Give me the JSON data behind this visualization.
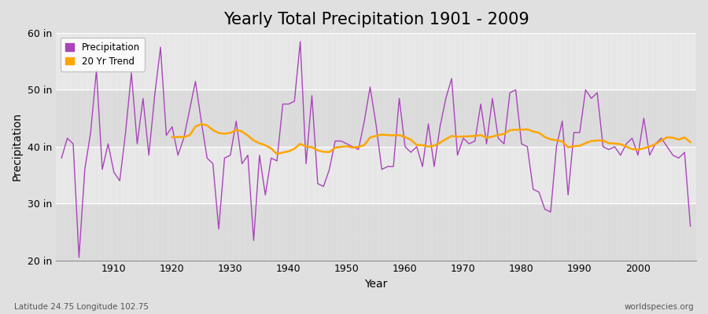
{
  "title": "Yearly Total Precipitation 1901 - 2009",
  "xlabel": "Year",
  "ylabel": "Precipitation",
  "start_year": 1901,
  "end_year": 2009,
  "precipitation": [
    38.0,
    41.5,
    40.5,
    20.5,
    36.0,
    42.5,
    53.5,
    36.0,
    40.5,
    35.5,
    34.0,
    42.5,
    53.0,
    40.5,
    48.5,
    38.5,
    49.0,
    57.5,
    42.0,
    43.5,
    38.5,
    41.5,
    46.5,
    51.5,
    44.5,
    38.0,
    37.0,
    25.5,
    38.0,
    38.5,
    44.5,
    37.0,
    38.5,
    23.5,
    38.5,
    31.5,
    38.0,
    37.5,
    47.5,
    47.5,
    48.0,
    58.5,
    37.0,
    49.0,
    33.5,
    33.0,
    36.0,
    41.0,
    41.0,
    40.5,
    40.0,
    39.5,
    44.5,
    50.5,
    44.0,
    36.0,
    36.5,
    36.5,
    48.5,
    40.0,
    39.0,
    40.0,
    36.5,
    44.0,
    36.5,
    43.5,
    48.5,
    52.0,
    38.5,
    41.5,
    40.5,
    41.0,
    47.5,
    40.5,
    48.5,
    41.5,
    40.5,
    49.5,
    50.0,
    40.5,
    40.0,
    32.5,
    32.0,
    29.0,
    28.5,
    40.0,
    44.5,
    31.5,
    42.5,
    42.5,
    50.0,
    48.5,
    49.5,
    40.0,
    39.5,
    40.0,
    38.5,
    40.5,
    41.5,
    38.5,
    45.0,
    38.5,
    40.5,
    41.5,
    40.0,
    38.5,
    38.0,
    39.0,
    26.0
  ],
  "ylim": [
    20,
    60
  ],
  "yticks": [
    20,
    30,
    40,
    50,
    60
  ],
  "ytick_labels": [
    "20 in",
    "30 in",
    "40 in",
    "50 in",
    "60 in"
  ],
  "xticks": [
    1910,
    1920,
    1930,
    1940,
    1950,
    1960,
    1970,
    1980,
    1990,
    2000
  ],
  "trend_window": 20,
  "line_color": "#AA44BB",
  "trend_color": "#FFA500",
  "bg_color": "#E0E0E0",
  "plot_bg_color": "#EBEBEB",
  "band_color_light": "#E8E8E8",
  "band_color_dark": "#D8D8D8",
  "grid_color": "#FFFFFF",
  "vgrid_color": "#CCCCCC",
  "title_fontsize": 15,
  "axis_fontsize": 10,
  "tick_fontsize": 9,
  "footer_left": "Latitude 24.75 Longitude 102.75",
  "footer_right": "worldspecies.org",
  "legend_entries": [
    "Precipitation",
    "20 Yr Trend"
  ]
}
